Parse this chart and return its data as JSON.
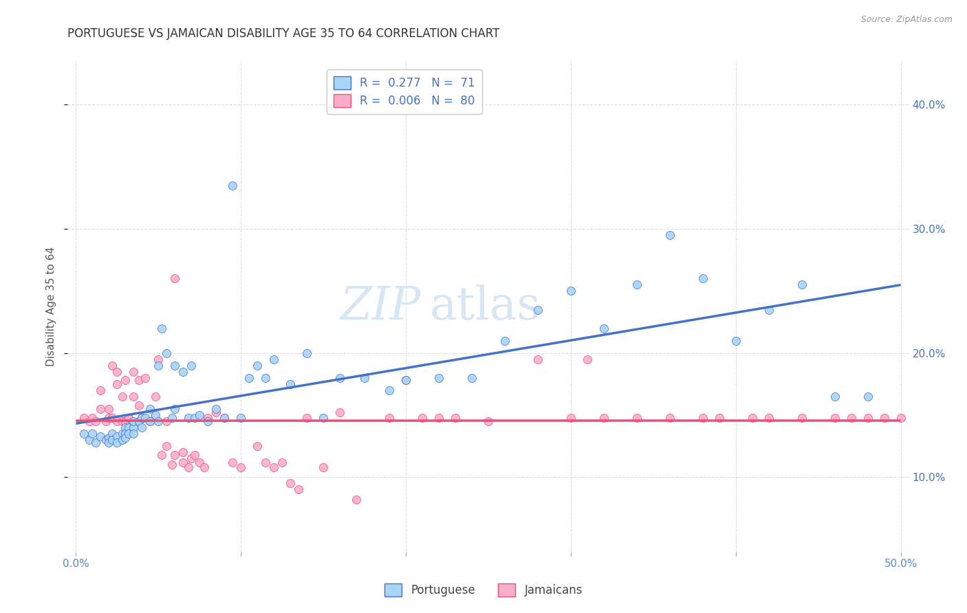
{
  "title": "PORTUGUESE VS JAMAICAN DISABILITY AGE 35 TO 64 CORRELATION CHART",
  "source": "Source: ZipAtlas.com",
  "ylabel": "Disability Age 35 to 64",
  "ylabel_ticks_labels": [
    "10.0%",
    "20.0%",
    "30.0%",
    "40.0%"
  ],
  "ylabel_ticks_vals": [
    0.1,
    0.2,
    0.3,
    0.4
  ],
  "xlim": [
    -0.005,
    0.505
  ],
  "ylim": [
    0.04,
    0.435
  ],
  "portuguese_color": "#A8D4F5",
  "jamaican_color": "#F9AECB",
  "trendline_portuguese_color": "#4472C4",
  "trendline_jamaican_color": "#E8507A",
  "legend_R_portuguese": "0.277",
  "legend_N_portuguese": "71",
  "legend_R_jamaican": "0.006",
  "legend_N_jamaican": "80",
  "watermark_zip": "ZIP",
  "watermark_atlas": "atlas",
  "grid_color": "#DDDDDD",
  "portuguese_x": [
    0.005,
    0.008,
    0.01,
    0.012,
    0.015,
    0.018,
    0.02,
    0.02,
    0.022,
    0.022,
    0.025,
    0.025,
    0.028,
    0.028,
    0.03,
    0.03,
    0.03,
    0.032,
    0.032,
    0.035,
    0.035,
    0.035,
    0.038,
    0.04,
    0.04,
    0.042,
    0.045,
    0.045,
    0.048,
    0.05,
    0.05,
    0.052,
    0.055,
    0.058,
    0.06,
    0.06,
    0.065,
    0.068,
    0.07,
    0.072,
    0.075,
    0.08,
    0.085,
    0.09,
    0.095,
    0.1,
    0.105,
    0.11,
    0.115,
    0.12,
    0.13,
    0.14,
    0.15,
    0.16,
    0.175,
    0.19,
    0.2,
    0.22,
    0.24,
    0.26,
    0.28,
    0.3,
    0.32,
    0.34,
    0.36,
    0.38,
    0.4,
    0.42,
    0.44,
    0.46,
    0.48
  ],
  "portuguese_y": [
    0.135,
    0.13,
    0.135,
    0.128,
    0.133,
    0.13,
    0.132,
    0.128,
    0.135,
    0.13,
    0.133,
    0.128,
    0.135,
    0.13,
    0.14,
    0.135,
    0.132,
    0.14,
    0.135,
    0.14,
    0.135,
    0.145,
    0.145,
    0.148,
    0.14,
    0.148,
    0.155,
    0.145,
    0.15,
    0.19,
    0.145,
    0.22,
    0.2,
    0.148,
    0.155,
    0.19,
    0.185,
    0.148,
    0.19,
    0.148,
    0.15,
    0.145,
    0.155,
    0.148,
    0.335,
    0.148,
    0.18,
    0.19,
    0.18,
    0.195,
    0.175,
    0.2,
    0.148,
    0.18,
    0.18,
    0.17,
    0.178,
    0.18,
    0.18,
    0.21,
    0.235,
    0.25,
    0.22,
    0.255,
    0.295,
    0.26,
    0.21,
    0.235,
    0.255,
    0.165,
    0.165
  ],
  "jamaican_x": [
    0.005,
    0.008,
    0.01,
    0.012,
    0.015,
    0.015,
    0.018,
    0.02,
    0.02,
    0.022,
    0.022,
    0.025,
    0.025,
    0.025,
    0.028,
    0.028,
    0.03,
    0.03,
    0.032,
    0.032,
    0.035,
    0.035,
    0.038,
    0.038,
    0.04,
    0.04,
    0.042,
    0.045,
    0.048,
    0.05,
    0.052,
    0.055,
    0.055,
    0.058,
    0.06,
    0.06,
    0.065,
    0.065,
    0.068,
    0.07,
    0.072,
    0.075,
    0.078,
    0.08,
    0.085,
    0.09,
    0.095,
    0.1,
    0.11,
    0.115,
    0.12,
    0.125,
    0.13,
    0.135,
    0.14,
    0.15,
    0.16,
    0.17,
    0.19,
    0.2,
    0.21,
    0.22,
    0.23,
    0.25,
    0.28,
    0.3,
    0.31,
    0.32,
    0.34,
    0.36,
    0.38,
    0.39,
    0.41,
    0.42,
    0.44,
    0.46,
    0.47,
    0.48,
    0.49,
    0.5
  ],
  "jamaican_y": [
    0.148,
    0.145,
    0.148,
    0.145,
    0.155,
    0.17,
    0.145,
    0.148,
    0.155,
    0.19,
    0.148,
    0.185,
    0.175,
    0.145,
    0.165,
    0.145,
    0.145,
    0.178,
    0.148,
    0.148,
    0.185,
    0.165,
    0.178,
    0.158,
    0.148,
    0.148,
    0.18,
    0.145,
    0.165,
    0.195,
    0.118,
    0.125,
    0.145,
    0.11,
    0.118,
    0.26,
    0.12,
    0.112,
    0.108,
    0.115,
    0.118,
    0.112,
    0.108,
    0.148,
    0.152,
    0.148,
    0.112,
    0.108,
    0.125,
    0.112,
    0.108,
    0.112,
    0.095,
    0.09,
    0.148,
    0.108,
    0.152,
    0.082,
    0.148,
    0.178,
    0.148,
    0.148,
    0.148,
    0.145,
    0.195,
    0.148,
    0.195,
    0.148,
    0.148,
    0.148,
    0.148,
    0.148,
    0.148,
    0.148,
    0.148,
    0.148,
    0.148,
    0.148,
    0.148,
    0.148
  ]
}
